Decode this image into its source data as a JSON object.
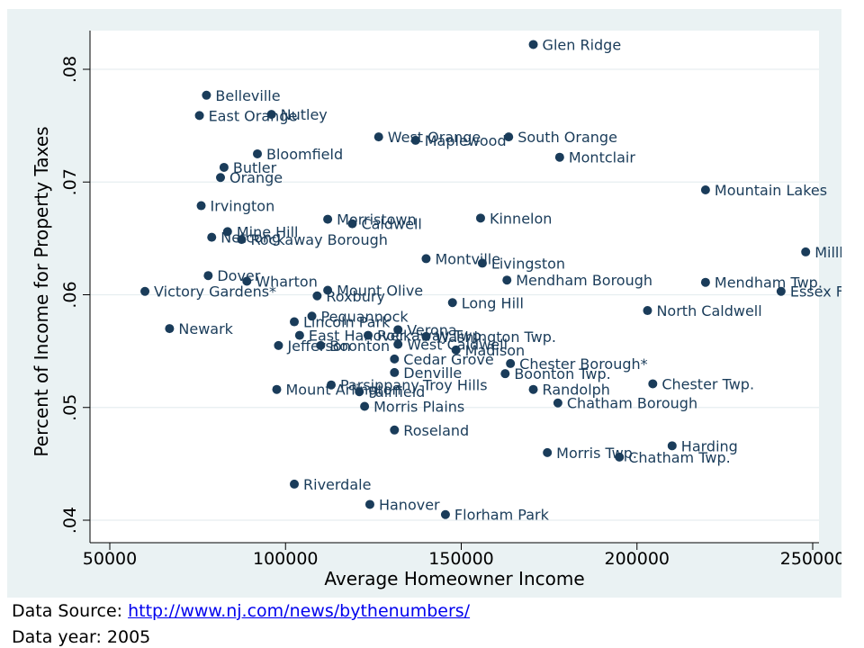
{
  "footer": {
    "source_label": "Data Source: ",
    "source_url": "http://www.nj.com/news/bythenumbers/",
    "year_text": "Data year: 2005"
  },
  "colors": {
    "marker": "#1a3c5a",
    "panel_bg": "#eaf2f3",
    "plot_bg": "#ffffff"
  },
  "chart_data": {
    "type": "scatter",
    "xlabel": "Average Homeowner Income",
    "ylabel": "Percent of Income for Property Taxes",
    "xlim": [
      50000,
      250000
    ],
    "ylim": [
      0.04,
      0.08
    ],
    "xticks": [
      50000,
      100000,
      150000,
      200000,
      250000
    ],
    "xtick_labels": [
      "50000",
      "100000",
      "150000",
      "200000",
      "250000"
    ],
    "yticks": [
      0.04,
      0.05,
      0.06,
      0.07,
      0.08
    ],
    "ytick_labels": [
      ".04",
      ".05",
      ".06",
      ".07",
      ".08"
    ],
    "grid": "horizontal",
    "points": [
      {
        "label": "Glen Ridge",
        "x": 170500,
        "y": 0.0822
      },
      {
        "label": "Belleville",
        "x": 77500,
        "y": 0.0777
      },
      {
        "label": "East Orange",
        "x": 75500,
        "y": 0.0759
      },
      {
        "label": "Nutley",
        "x": 96000,
        "y": 0.076
      },
      {
        "label": "West Orange",
        "x": 126500,
        "y": 0.074
      },
      {
        "label": "Maplewood",
        "x": 137000,
        "y": 0.0737
      },
      {
        "label": "South Orange",
        "x": 163500,
        "y": 0.074
      },
      {
        "label": "Bloomfield",
        "x": 92000,
        "y": 0.0725
      },
      {
        "label": "Montclair",
        "x": 178000,
        "y": 0.0722
      },
      {
        "label": "Butler",
        "x": 82500,
        "y": 0.0713
      },
      {
        "label": "Orange",
        "x": 81500,
        "y": 0.0704
      },
      {
        "label": "Mountain Lakes",
        "x": 219500,
        "y": 0.0693
      },
      {
        "label": "Irvington",
        "x": 76000,
        "y": 0.0679
      },
      {
        "label": "Morristown",
        "x": 112000,
        "y": 0.0667
      },
      {
        "label": "Caldwell",
        "x": 119000,
        "y": 0.0663
      },
      {
        "label": "Kinnelon",
        "x": 155500,
        "y": 0.0668
      },
      {
        "label": "Mine Hill",
        "x": 83500,
        "y": 0.0656
      },
      {
        "label": "Netcong",
        "x": 79000,
        "y": 0.0651
      },
      {
        "label": "Rockaway Borough",
        "x": 87500,
        "y": 0.0649
      },
      {
        "label": "Millburn",
        "x": 248000,
        "y": 0.0638
      },
      {
        "label": "Montville",
        "x": 140000,
        "y": 0.0632
      },
      {
        "label": "Livingston",
        "x": 156000,
        "y": 0.0628
      },
      {
        "label": "Dover",
        "x": 78000,
        "y": 0.0617
      },
      {
        "label": "Wharton",
        "x": 89000,
        "y": 0.0612
      },
      {
        "label": "Mendham Borough",
        "x": 163000,
        "y": 0.0613
      },
      {
        "label": "Mendham Twp.",
        "x": 219500,
        "y": 0.0611
      },
      {
        "label": "Victory Gardens*",
        "x": 60000,
        "y": 0.0603
      },
      {
        "label": "Mount Olive",
        "x": 112000,
        "y": 0.0604
      },
      {
        "label": "Essex Fells",
        "x": 241000,
        "y": 0.0603
      },
      {
        "label": "Roxbury",
        "x": 109000,
        "y": 0.0599
      },
      {
        "label": "Long Hill",
        "x": 147500,
        "y": 0.0593
      },
      {
        "label": "North Caldwell",
        "x": 203000,
        "y": 0.0586
      },
      {
        "label": "Pequannock",
        "x": 107500,
        "y": 0.0581
      },
      {
        "label": "Lincoln Park",
        "x": 102500,
        "y": 0.0576
      },
      {
        "label": "Newark",
        "x": 67000,
        "y": 0.057
      },
      {
        "label": "Verona",
        "x": 132000,
        "y": 0.0569
      },
      {
        "label": "East Hanover",
        "x": 104000,
        "y": 0.0564
      },
      {
        "label": "Rockaway Twp.",
        "x": 123500,
        "y": 0.0564
      },
      {
        "label": "Washington Twp.",
        "x": 140000,
        "y": 0.0563
      },
      {
        "label": "West Caldwell",
        "x": 132000,
        "y": 0.0556
      },
      {
        "label": "Jefferson",
        "x": 98000,
        "y": 0.0555
      },
      {
        "label": "Boonton",
        "x": 110000,
        "y": 0.0555
      },
      {
        "label": "Madison",
        "x": 148500,
        "y": 0.0551
      },
      {
        "label": "Cedar Grove",
        "x": 131000,
        "y": 0.0543
      },
      {
        "label": "Chester Borough*",
        "x": 164000,
        "y": 0.0539
      },
      {
        "label": "Denville",
        "x": 131000,
        "y": 0.0531
      },
      {
        "label": "Boonton Twp.",
        "x": 162500,
        "y": 0.053
      },
      {
        "label": "Parsippany-Troy Hills",
        "x": 113000,
        "y": 0.052
      },
      {
        "label": "Chester Twp.",
        "x": 204500,
        "y": 0.0521
      },
      {
        "label": "Mount Arlington",
        "x": 97500,
        "y": 0.0516
      },
      {
        "label": "Fairfield",
        "x": 121000,
        "y": 0.0514
      },
      {
        "label": "Randolph",
        "x": 170500,
        "y": 0.0516
      },
      {
        "label": "Chatham Borough",
        "x": 177500,
        "y": 0.0504
      },
      {
        "label": "Morris Plains",
        "x": 122500,
        "y": 0.0501
      },
      {
        "label": "Roseland",
        "x": 131000,
        "y": 0.048
      },
      {
        "label": "Harding",
        "x": 210000,
        "y": 0.0466
      },
      {
        "label": "Morris Twp.",
        "x": 174500,
        "y": 0.046
      },
      {
        "label": "Chatham Twp.",
        "x": 195000,
        "y": 0.0456
      },
      {
        "label": "Riverdale",
        "x": 102500,
        "y": 0.0432
      },
      {
        "label": "Hanover",
        "x": 124000,
        "y": 0.0414
      },
      {
        "label": "Florham Park",
        "x": 145500,
        "y": 0.0405
      }
    ]
  }
}
